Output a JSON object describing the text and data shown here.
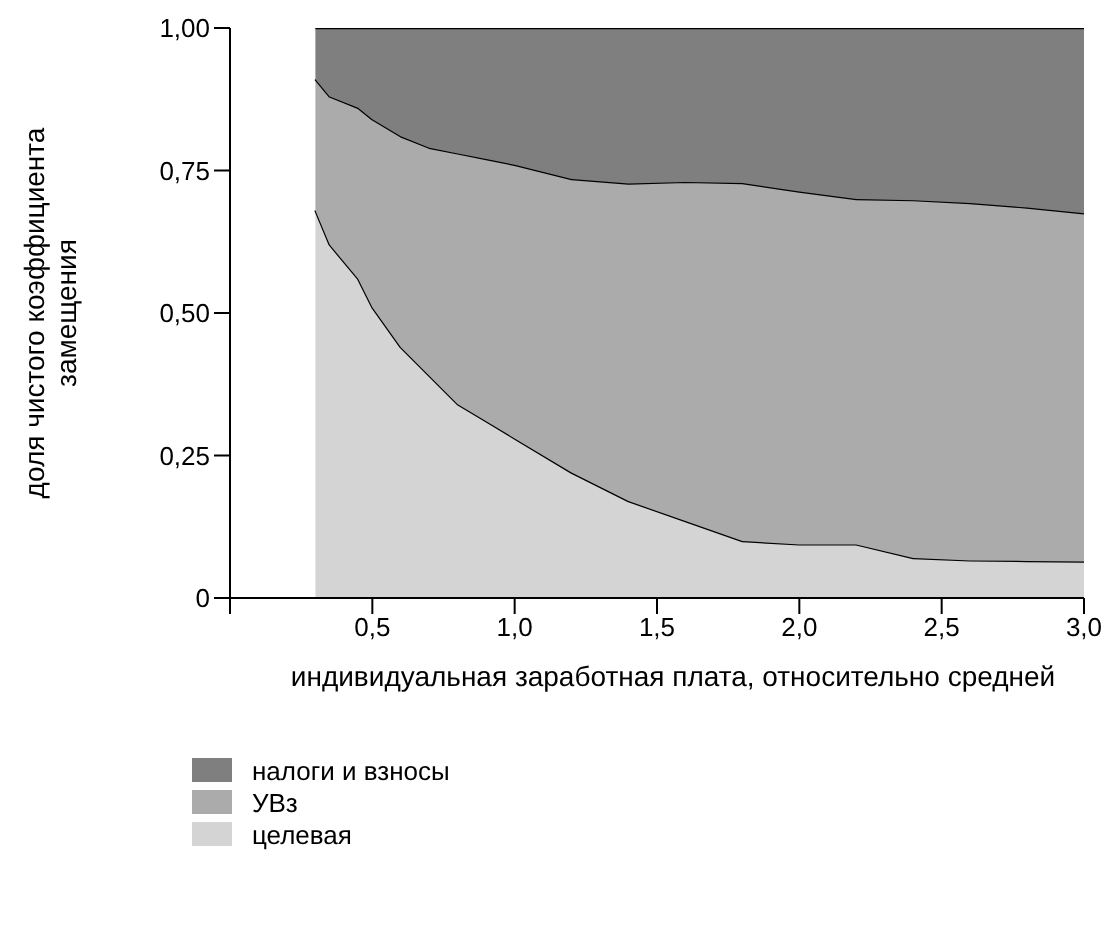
{
  "chart_data": {
    "type": "area",
    "stacked": true,
    "xlabel": "индивидуальная заработная плата, относительно средней",
    "ylabel": "доля чистого коэффициента замещения",
    "x": [
      0.3,
      0.35,
      0.45,
      0.5,
      0.6,
      0.7,
      0.8,
      0.9,
      1.0,
      1.2,
      1.4,
      1.6,
      1.8,
      2.0,
      2.2,
      2.4,
      2.6,
      2.8,
      3.0
    ],
    "series": [
      {
        "name": "целевая",
        "color": "#d4d4d4",
        "values": [
          0.68,
          0.62,
          0.56,
          0.51,
          0.44,
          0.39,
          0.34,
          0.31,
          0.28,
          0.22,
          0.17,
          0.135,
          0.1,
          0.094,
          0.094,
          0.07,
          0.066,
          0.065,
          0.064
        ]
      },
      {
        "name": "УВз",
        "color": "#ababab",
        "values": [
          0.23,
          0.26,
          0.3,
          0.33,
          0.37,
          0.4,
          0.44,
          0.46,
          0.48,
          0.515,
          0.557,
          0.595,
          0.628,
          0.619,
          0.606,
          0.628,
          0.627,
          0.62,
          0.611
        ]
      },
      {
        "name": "налоги и взносы",
        "color": "#7f7f7f",
        "values": [
          0.09,
          0.12,
          0.14,
          0.16,
          0.19,
          0.21,
          0.22,
          0.23,
          0.24,
          0.265,
          0.273,
          0.27,
          0.272,
          0.287,
          0.3,
          0.302,
          0.307,
          0.315,
          0.325
        ]
      }
    ],
    "xlim": [
      0,
      3
    ],
    "xticks": [
      {
        "value": 0,
        "label": null
      },
      {
        "value": 0.5,
        "label": "0,5"
      },
      {
        "value": 1,
        "label": "1,0"
      },
      {
        "value": 1.5,
        "label": "1,5"
      },
      {
        "value": 2,
        "label": "2,0"
      },
      {
        "value": 2.5,
        "label": "2,5"
      },
      {
        "value": 3,
        "label": "3,0"
      }
    ],
    "ylim": [
      0,
      1
    ],
    "yticks": [
      0,
      {
        "value": 0.25,
        "label": "0,25"
      },
      {
        "value": 0.5,
        "label": "0,50"
      },
      {
        "value": 0.75,
        "label": "0,75"
      },
      {
        "value": 1,
        "label": "1,00"
      }
    ],
    "grid": false,
    "legend": "bottom left"
  }
}
